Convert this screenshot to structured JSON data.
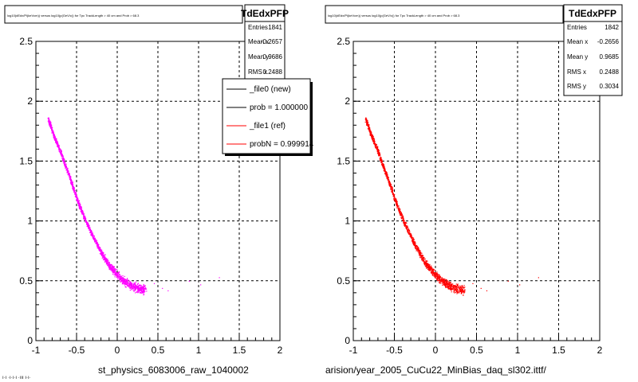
{
  "colors": {
    "left_points": "#ff00ff",
    "right_points": "#ff0000",
    "grid": "#000000",
    "legend_ref": "#ff0000",
    "legend_new": "#000000"
  },
  "panels": [
    {
      "id": "left",
      "title": "log10(dEdx/Pi(keVcm)) versus log10(p(GeV/c)) for Tpc TrackLength > 40 cm and Prob > 68.3",
      "footer_label": "st_physics_6083006_raw_1040002",
      "stats": {
        "name": "TdEdxPFP",
        "rows": [
          {
            "label": "Entries",
            "value": "1841"
          },
          {
            "label": "Mean x",
            "value": "-0.2657"
          },
          {
            "label": "Mean y",
            "value": "0.9686"
          },
          {
            "label": "RMS x",
            "value": "0.2488"
          }
        ]
      },
      "legend": [
        {
          "label": "_file0 (new)",
          "color": "#000000"
        },
        {
          "label": "prob = 1.000000",
          "color": "#000000"
        },
        {
          "label": "_file1 (ref)",
          "color": "#ff0000"
        },
        {
          "label": "probN = 0.999914",
          "color": "#ff0000"
        }
      ]
    },
    {
      "id": "right",
      "title": "log10(dEdx/Pi(keVcm)) versus log10(p(GeV/c)) for Tpc TrackLength > 40 cm and Prob > 68.3",
      "footer_label": "arision/year_2005_CuCu22_MinBias_daq_sl302.ittf/",
      "stats": {
        "name": "TdEdxPFP",
        "rows": [
          {
            "label": "Entries",
            "value": "1842"
          },
          {
            "label": "Mean x",
            "value": "-0.2656"
          },
          {
            "label": "Mean y",
            "value": "0.9685"
          },
          {
            "label": "RMS x",
            "value": "0.2488"
          },
          {
            "label": "RMS y",
            "value": "0.3034"
          }
        ]
      }
    }
  ],
  "bottom_left_text": "ı·ı ·ı·ı·ı ·ııı ı·ı·",
  "chart_data": [
    {
      "type": "scatter",
      "title": "log10(dEdx/Pi(keVcm)) versus log10(p(GeV/c)) for Tpc TrackLength > 40 cm and Prob > 68.3",
      "xlabel": "st_physics_6083006_raw_1040002",
      "ylabel": "",
      "xlim": [
        -1,
        2
      ],
      "ylim": [
        0,
        2.5
      ],
      "xticks": [
        "-1",
        "-0.5",
        "0",
        "0.5",
        "1",
        "1.5",
        "2"
      ],
      "yticks": [
        "0",
        "0.5",
        "1",
        "1.5",
        "2",
        "2.5"
      ],
      "grid": true,
      "series": [
        {
          "name": "_file0 (new)",
          "color": "#ff00ff"
        }
      ],
      "band": [
        [
          -0.85,
          1.85
        ],
        [
          -0.8,
          1.75
        ],
        [
          -0.75,
          1.66
        ],
        [
          -0.7,
          1.58
        ],
        [
          -0.65,
          1.48
        ],
        [
          -0.6,
          1.39
        ],
        [
          -0.55,
          1.29
        ],
        [
          -0.5,
          1.19
        ],
        [
          -0.45,
          1.1
        ],
        [
          -0.4,
          1.02
        ],
        [
          -0.35,
          0.94
        ],
        [
          -0.3,
          0.87
        ],
        [
          -0.25,
          0.8
        ],
        [
          -0.2,
          0.74
        ],
        [
          -0.15,
          0.68
        ],
        [
          -0.1,
          0.63
        ],
        [
          -0.05,
          0.59
        ],
        [
          0,
          0.55
        ],
        [
          0.05,
          0.52
        ],
        [
          0.1,
          0.49
        ],
        [
          0.15,
          0.47
        ],
        [
          0.2,
          0.45
        ],
        [
          0.25,
          0.44
        ],
        [
          0.3,
          0.43
        ],
        [
          0.35,
          0.43
        ]
      ],
      "stats": {
        "entries": 1841,
        "mean_x": -0.2657,
        "mean_y": 0.9686,
        "rms_x": 0.2488
      },
      "legend_position": "top-right"
    },
    {
      "type": "scatter",
      "title": "log10(dEdx/Pi(keVcm)) versus log10(p(GeV/c)) for Tpc TrackLength > 40 cm and Prob > 68.3",
      "xlabel": "arision/year_2005_CuCu22_MinBias_daq_sl302.ittf/",
      "ylabel": "",
      "xlim": [
        -1,
        2
      ],
      "ylim": [
        0,
        2.5
      ],
      "xticks": [
        "-1",
        "-0.5",
        "0",
        "0.5",
        "1",
        "1.5",
        "2"
      ],
      "yticks": [
        "0",
        "0.5",
        "1",
        "1.5",
        "2",
        "2.5"
      ],
      "grid": true,
      "series": [
        {
          "name": "_file1 (ref)",
          "color": "#ff0000"
        }
      ],
      "band": [
        [
          -0.85,
          1.85
        ],
        [
          -0.8,
          1.75
        ],
        [
          -0.75,
          1.66
        ],
        [
          -0.7,
          1.58
        ],
        [
          -0.65,
          1.48
        ],
        [
          -0.6,
          1.39
        ],
        [
          -0.55,
          1.29
        ],
        [
          -0.5,
          1.19
        ],
        [
          -0.45,
          1.1
        ],
        [
          -0.4,
          1.02
        ],
        [
          -0.35,
          0.94
        ],
        [
          -0.3,
          0.87
        ],
        [
          -0.25,
          0.8
        ],
        [
          -0.2,
          0.74
        ],
        [
          -0.15,
          0.68
        ],
        [
          -0.1,
          0.63
        ],
        [
          -0.05,
          0.59
        ],
        [
          0,
          0.55
        ],
        [
          0.05,
          0.52
        ],
        [
          0.1,
          0.49
        ],
        [
          0.15,
          0.47
        ],
        [
          0.2,
          0.45
        ],
        [
          0.25,
          0.44
        ],
        [
          0.3,
          0.43
        ],
        [
          0.35,
          0.43
        ]
      ],
      "stats": {
        "entries": 1842,
        "mean_x": -0.2656,
        "mean_y": 0.9685,
        "rms_x": 0.2488,
        "rms_y": 0.3034
      }
    }
  ]
}
